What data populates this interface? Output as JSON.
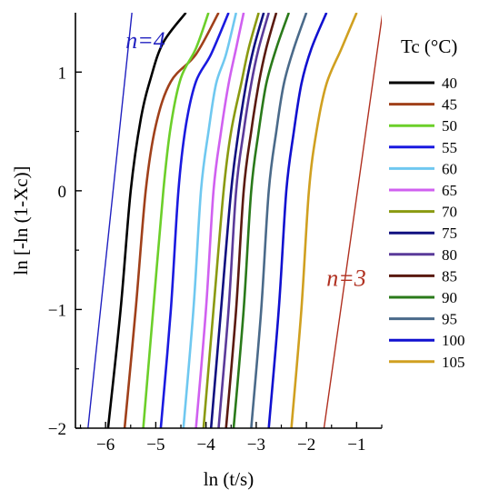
{
  "chart_data": {
    "type": "line",
    "title": "",
    "xlabel": "ln (t/s)",
    "ylabel": "ln [-ln (1-Xc)]",
    "xlim": [
      -6.6,
      -0.5
    ],
    "ylim": [
      -2,
      1.5
    ],
    "xticks": [
      -6,
      -5,
      -4,
      -3,
      -2,
      -1
    ],
    "yticks": [
      -2,
      -1,
      0,
      1
    ],
    "legend_title": "Tc (°C)",
    "legend_position": "right",
    "series": [
      {
        "name": "40",
        "color": "#000000",
        "x": [
          -5.95,
          -5.7,
          -5.5,
          -5.3,
          -5.1,
          -4.85,
          -4.4
        ],
        "y": [
          -2,
          -1.0,
          0.0,
          0.6,
          0.95,
          1.25,
          1.5
        ]
      },
      {
        "name": "45",
        "color": "#a0401a",
        "x": [
          -5.62,
          -5.4,
          -5.2,
          -5.0,
          -4.7,
          -4.2,
          -3.75
        ],
        "y": [
          -2,
          -1.0,
          0.0,
          0.55,
          0.92,
          1.15,
          1.5
        ]
      },
      {
        "name": "50",
        "color": "#6ccf2a",
        "x": [
          -5.25,
          -5.05,
          -4.85,
          -4.7,
          -4.5,
          -4.2,
          -3.95
        ],
        "y": [
          -2,
          -1.0,
          0.0,
          0.55,
          0.95,
          1.2,
          1.5
        ]
      },
      {
        "name": "55",
        "color": "#1a1ae0",
        "x": [
          -4.9,
          -4.7,
          -4.55,
          -4.4,
          -4.2,
          -3.9,
          -3.55
        ],
        "y": [
          -2,
          -1.0,
          0.0,
          0.55,
          0.92,
          1.15,
          1.5
        ]
      },
      {
        "name": "60",
        "color": "#6fc8f0",
        "x": [
          -4.45,
          -4.25,
          -4.1,
          -3.95,
          -3.8,
          -3.6,
          -3.4
        ],
        "y": [
          -2,
          -1.0,
          0.0,
          0.5,
          0.9,
          1.15,
          1.5
        ]
      },
      {
        "name": "65",
        "color": "#d060f0",
        "x": [
          -4.2,
          -4.0,
          -3.85,
          -3.7,
          -3.55,
          -3.4,
          -3.25
        ],
        "y": [
          -2,
          -1.0,
          0.0,
          0.5,
          0.9,
          1.2,
          1.5
        ]
      },
      {
        "name": "70",
        "color": "#8a9a10",
        "x": [
          -4.05,
          -3.85,
          -3.65,
          -3.5,
          -3.3,
          -3.15,
          -2.95
        ],
        "y": [
          -2,
          -1.0,
          0.0,
          0.5,
          0.9,
          1.2,
          1.5
        ]
      },
      {
        "name": "75",
        "color": "#101080",
        "x": [
          -3.9,
          -3.7,
          -3.5,
          -3.35,
          -3.2,
          -3.05,
          -2.85
        ],
        "y": [
          -2,
          -1.0,
          0.0,
          0.5,
          0.9,
          1.2,
          1.5
        ]
      },
      {
        "name": "80",
        "color": "#5a3a9a",
        "x": [
          -3.75,
          -3.55,
          -3.4,
          -3.25,
          -3.1,
          -2.95,
          -2.75
        ],
        "y": [
          -2,
          -1.0,
          0.0,
          0.5,
          0.9,
          1.2,
          1.5
        ]
      },
      {
        "name": "85",
        "color": "#5a1a10",
        "x": [
          -3.6,
          -3.4,
          -3.25,
          -3.1,
          -2.95,
          -2.8,
          -2.6
        ],
        "y": [
          -2,
          -1.0,
          0.0,
          0.5,
          0.9,
          1.2,
          1.5
        ]
      },
      {
        "name": "90",
        "color": "#2a7a1a",
        "x": [
          -3.45,
          -3.25,
          -3.1,
          -2.95,
          -2.8,
          -2.6,
          -2.35
        ],
        "y": [
          -2,
          -1.0,
          0.0,
          0.5,
          0.9,
          1.2,
          1.5
        ]
      },
      {
        "name": "95",
        "color": "#4a6a8a",
        "x": [
          -3.1,
          -2.9,
          -2.75,
          -2.6,
          -2.45,
          -2.25,
          -2.0
        ],
        "y": [
          -2,
          -1.0,
          0.0,
          0.5,
          0.9,
          1.2,
          1.5
        ]
      },
      {
        "name": "100",
        "color": "#1010d0",
        "x": [
          -2.75,
          -2.55,
          -2.4,
          -2.25,
          -2.1,
          -1.9,
          -1.6
        ],
        "y": [
          -2,
          -1.0,
          0.0,
          0.5,
          0.9,
          1.2,
          1.5
        ]
      },
      {
        "name": "105",
        "color": "#d0a020",
        "x": [
          -2.3,
          -2.1,
          -1.95,
          -1.8,
          -1.6,
          -1.3,
          -1.0
        ],
        "y": [
          -2,
          -1.0,
          0.0,
          0.5,
          0.9,
          1.2,
          1.5
        ]
      }
    ],
    "reference_lines": [
      {
        "label": "n=4",
        "color": "#2020c0",
        "x": [
          -6.35,
          -5.475
        ],
        "y": [
          -2,
          1.5
        ]
      },
      {
        "label": "n=3",
        "color": "#b03020",
        "x": [
          -1.65,
          -0.483
        ],
        "y": [
          -2,
          1.5
        ]
      }
    ],
    "annotations": [
      {
        "text": "n=4",
        "color": "#2020c0",
        "x": -5.6,
        "y": 1.2
      },
      {
        "text": "n=3",
        "color": "#b03020",
        "x": -1.6,
        "y": -0.8
      }
    ]
  }
}
